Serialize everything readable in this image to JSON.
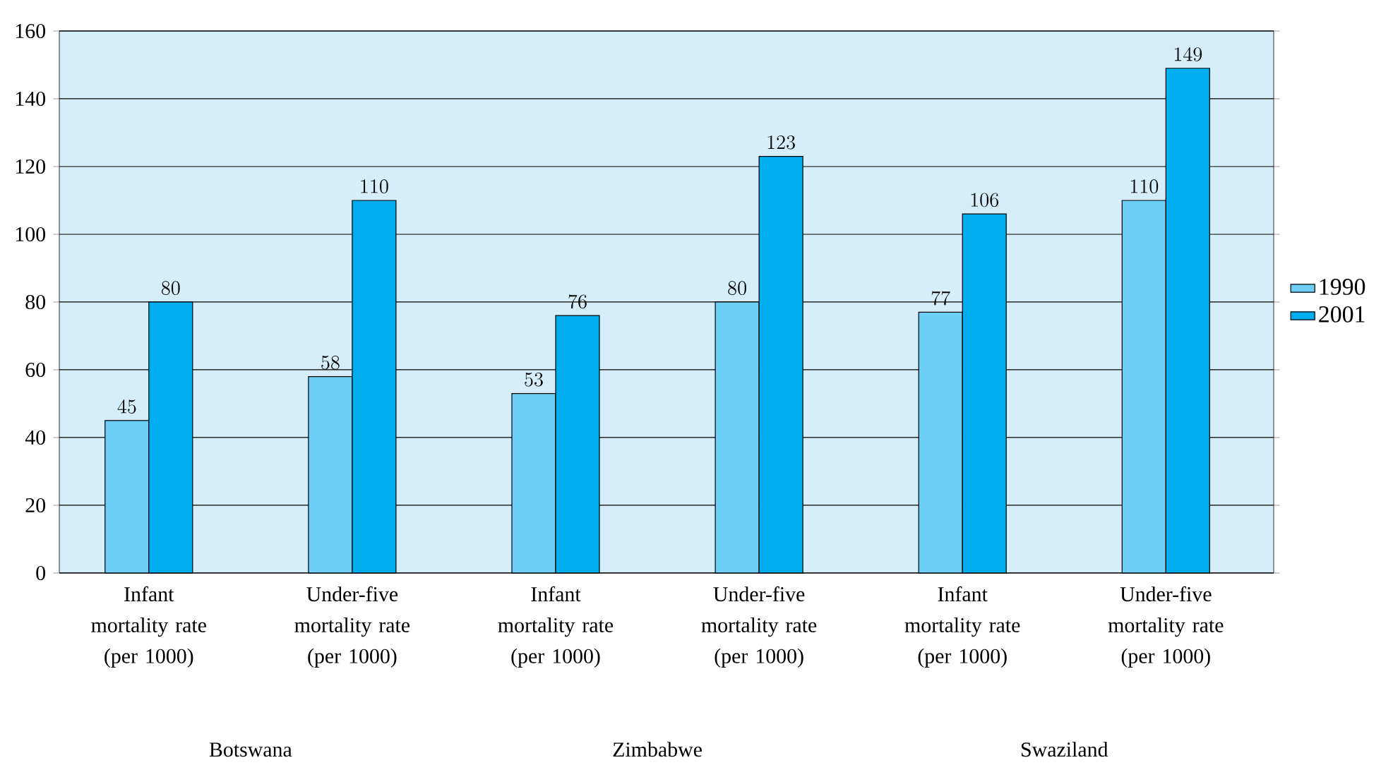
{
  "chart_data": {
    "type": "bar",
    "categories": [
      "Infant mortality rate (per 1000)",
      "Under-five mortality rate (per 1000)",
      "Infant mortality rate (per 1000)",
      "Under-five mortality rate (per 1000)",
      "Infant mortality rate (per 1000)",
      "Under-five mortality rate (per 1000)"
    ],
    "series": [
      {
        "name": "1990",
        "color": "#6dcff6",
        "values": [
          45,
          58,
          53,
          80,
          77,
          110
        ]
      },
      {
        "name": "2001",
        "color": "#00aeef",
        "values": [
          80,
          110,
          76,
          123,
          106,
          149
        ]
      }
    ],
    "annotations": [
      "Botswana",
      "Zimbabwe",
      "Swaziland"
    ],
    "ylim": [
      0,
      160
    ],
    "yticks": [
      0,
      20,
      40,
      60,
      80,
      100,
      120,
      140,
      160
    ],
    "grid": "y",
    "legend": "right",
    "data_labels": true
  }
}
